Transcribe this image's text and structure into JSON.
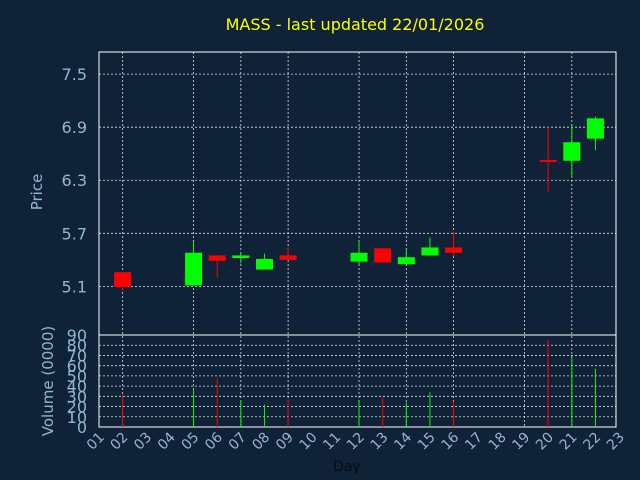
{
  "chart_data": {
    "type": "candlestick",
    "title": "MASS - last updated 22/01/2026",
    "xlabel": "Day",
    "price_panel": {
      "ylabel": "Price",
      "ylim": [
        4.55,
        7.75
      ],
      "yticks": [
        5.1,
        5.7,
        6.3,
        6.9,
        7.5
      ],
      "ytick_labels": [
        "5.1",
        "5.7",
        "6.3",
        "6.9",
        "7.5"
      ]
    },
    "volume_panel": {
      "ylabel": "Volume (0000)",
      "ylim": [
        0,
        90
      ],
      "yticks": [
        0,
        10,
        20,
        30,
        40,
        50,
        60,
        70,
        80,
        90
      ],
      "ytick_labels": [
        "0",
        "10",
        "20",
        "30",
        "40",
        "50",
        "60",
        "70",
        "80",
        "90"
      ]
    },
    "x_categories": [
      "01",
      "02",
      "03",
      "04",
      "05",
      "06",
      "07",
      "08",
      "09",
      "10",
      "11",
      "12",
      "13",
      "14",
      "15",
      "16",
      "17",
      "18",
      "19",
      "20",
      "21",
      "22",
      "23"
    ],
    "x_gridlines_at": [
      "02",
      "05",
      "07",
      "09",
      "12",
      "14",
      "16",
      "19",
      "21"
    ],
    "colors": {
      "up": "#00ff00",
      "down": "#ff0000",
      "background": "#0f2237",
      "plot_border": "#ffffff",
      "title": "#ffff00",
      "ticks": "#93b6d4"
    },
    "candles": [
      {
        "day": "02",
        "open": 5.26,
        "close": 5.09,
        "high": 5.26,
        "low": 5.05,
        "volume": 31
      },
      {
        "day": "05",
        "open": 5.11,
        "close": 5.48,
        "high": 5.6,
        "low": 5.11,
        "volume": 36
      },
      {
        "day": "06",
        "open": 5.45,
        "close": 5.39,
        "high": 5.45,
        "low": 5.2,
        "volume": 48
      },
      {
        "day": "07",
        "open": 5.42,
        "close": 5.45,
        "high": 5.47,
        "low": 5.36,
        "volume": 26
      },
      {
        "day": "08",
        "open": 5.29,
        "close": 5.41,
        "high": 5.47,
        "low": 5.29,
        "volume": 22
      },
      {
        "day": "09",
        "open": 5.45,
        "close": 5.4,
        "high": 5.55,
        "low": 5.4,
        "volume": 27
      },
      {
        "day": "12",
        "open": 5.38,
        "close": 5.48,
        "high": 5.61,
        "low": 5.35,
        "volume": 25
      },
      {
        "day": "13",
        "open": 5.53,
        "close": 5.37,
        "high": 5.53,
        "low": 5.37,
        "volume": 29
      },
      {
        "day": "14",
        "open": 5.35,
        "close": 5.43,
        "high": 5.51,
        "low": 5.35,
        "volume": 24
      },
      {
        "day": "15",
        "open": 5.45,
        "close": 5.54,
        "high": 5.65,
        "low": 5.45,
        "volume": 34
      },
      {
        "day": "16",
        "open": 5.54,
        "close": 5.48,
        "high": 5.72,
        "low": 5.44,
        "volume": 25
      },
      {
        "day": "20",
        "open": 6.53,
        "close": 6.51,
        "high": 6.9,
        "low": 6.17,
        "volume": 85
      },
      {
        "day": "21",
        "open": 6.52,
        "close": 6.73,
        "high": 6.92,
        "low": 6.33,
        "volume": 68
      },
      {
        "day": "22",
        "open": 6.77,
        "close": 7.0,
        "high": 7.02,
        "low": 6.64,
        "volume": 57
      }
    ]
  }
}
